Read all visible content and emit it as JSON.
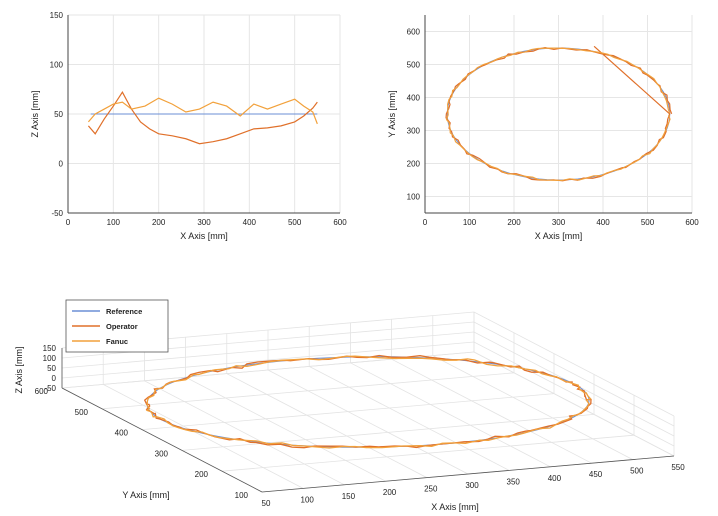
{
  "chart_data": [
    {
      "type": "line",
      "xlabel": "X Axis [mm]",
      "ylabel": "Z Axis [mm]",
      "xlim": [
        0,
        600
      ],
      "ylim": [
        -50,
        150
      ],
      "xticks": [
        0,
        100,
        200,
        300,
        400,
        500,
        600
      ],
      "yticks": [
        -50,
        0,
        50,
        100,
        150
      ],
      "grid": true,
      "series": [
        {
          "name": "Reference",
          "color": "#6b8fd6",
          "x": [
            50,
            550
          ],
          "y": [
            50,
            50
          ]
        },
        {
          "name": "Operator",
          "color": "#e0702a",
          "x": [
            45,
            60,
            80,
            100,
            120,
            140,
            160,
            180,
            200,
            230,
            260,
            290,
            320,
            350,
            380,
            410,
            440,
            470,
            500,
            520,
            540,
            550
          ],
          "y": [
            38,
            30,
            45,
            58,
            72,
            55,
            42,
            35,
            30,
            28,
            25,
            20,
            22,
            25,
            30,
            35,
            36,
            38,
            42,
            48,
            56,
            62
          ]
        },
        {
          "name": "Fanuc",
          "color": "#f2a13b",
          "x": [
            550,
            540,
            520,
            500,
            470,
            440,
            410,
            380,
            350,
            320,
            290,
            260,
            230,
            200,
            170,
            140,
            120,
            100,
            80,
            60,
            45
          ],
          "y": [
            40,
            52,
            58,
            65,
            60,
            55,
            60,
            48,
            58,
            62,
            55,
            52,
            60,
            66,
            58,
            55,
            62,
            60,
            55,
            50,
            42
          ]
        }
      ]
    },
    {
      "type": "line",
      "xlabel": "X Axis [mm]",
      "ylabel": "Y Axis [mm]",
      "xlim": [
        0,
        600
      ],
      "ylim": [
        50,
        650
      ],
      "xticks": [
        0,
        100,
        200,
        300,
        400,
        500,
        600
      ],
      "yticks": [
        100,
        200,
        300,
        400,
        500,
        600
      ],
      "grid": true,
      "shape": "ellipse",
      "center": [
        300,
        350
      ],
      "radii": [
        250,
        200
      ],
      "series": [
        {
          "name": "Reference",
          "color": "#6b8fd6"
        },
        {
          "name": "Operator",
          "color": "#e0702a",
          "end_point": [
            380,
            555
          ]
        },
        {
          "name": "Fanuc",
          "color": "#f2a13b"
        }
      ]
    },
    {
      "type": "line",
      "projection": "3d",
      "xlabel": "X Axis [mm]",
      "ylabel": "Y Axis [mm]",
      "zlabel": "Z Axis [mm]",
      "xticks": [
        50,
        100,
        150,
        200,
        250,
        300,
        350,
        400,
        450,
        500,
        550
      ],
      "yticks": [
        100,
        200,
        300,
        400,
        500,
        600
      ],
      "zticks": [
        -50,
        0,
        50,
        100,
        150
      ],
      "grid": true,
      "legend": {
        "position": "top-left",
        "entries": [
          "Reference",
          "Operator",
          "Fanuc"
        ]
      },
      "shape": "ellipse",
      "center": [
        300,
        350,
        50
      ],
      "radii": [
        250,
        200
      ],
      "series": [
        {
          "name": "Reference",
          "color": "#6b8fd6"
        },
        {
          "name": "Operator",
          "color": "#e0702a"
        },
        {
          "name": "Fanuc",
          "color": "#f2a13b"
        }
      ]
    }
  ]
}
